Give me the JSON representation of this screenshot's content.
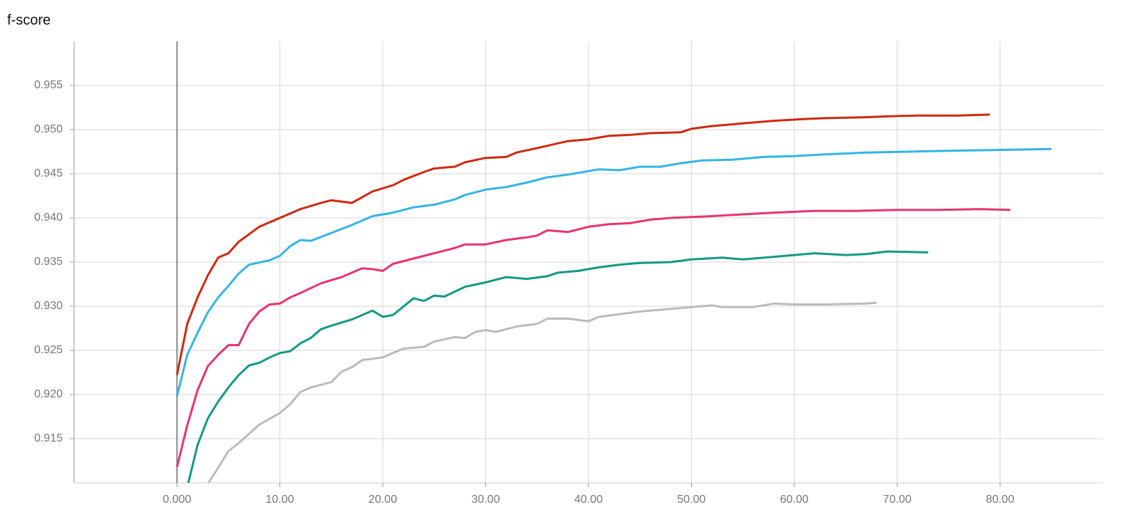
{
  "chart_data": {
    "type": "line",
    "title": "f-score",
    "xlim": [
      -10,
      90
    ],
    "ylim": [
      0.91,
      0.96
    ],
    "grid": true,
    "xticks": [
      {
        "value": 0,
        "label": "0.000"
      },
      {
        "value": 10,
        "label": "10.00"
      },
      {
        "value": 20,
        "label": "20.00"
      },
      {
        "value": 30,
        "label": "30.00"
      },
      {
        "value": 40,
        "label": "40.00"
      },
      {
        "value": 50,
        "label": "50.00"
      },
      {
        "value": 60,
        "label": "60.00"
      },
      {
        "value": 70,
        "label": "70.00"
      },
      {
        "value": 80,
        "label": "80.00"
      }
    ],
    "yticks": [
      0.915,
      {
        "value": 0.92,
        "label": "0.920"
      },
      0.925,
      {
        "value": 0.93,
        "label": "0.930"
      },
      0.935,
      {
        "value": 0.94,
        "label": "0.940"
      },
      0.945,
      {
        "value": 0.95,
        "label": "0.950"
      },
      0.955
    ],
    "series": [
      {
        "color": "#cc2a10",
        "x": [
          0,
          1,
          2,
          3,
          4,
          5,
          6,
          8,
          10,
          12,
          14,
          15,
          17,
          19,
          21,
          22,
          24,
          25,
          27,
          28,
          30,
          32,
          33,
          35,
          38,
          40,
          42,
          44,
          46,
          49,
          50,
          52,
          55,
          58,
          61,
          63,
          67,
          69,
          72,
          76,
          79
        ],
        "values": [
          0.9222,
          0.928,
          0.931,
          0.9335,
          0.9355,
          0.936,
          0.9373,
          0.939,
          0.94,
          0.941,
          0.9417,
          0.942,
          0.9417,
          0.943,
          0.9437,
          0.9443,
          0.9452,
          0.9456,
          0.9458,
          0.9463,
          0.9468,
          0.9469,
          0.9474,
          0.9479,
          0.9487,
          0.9489,
          0.9493,
          0.9494,
          0.9496,
          0.9497,
          0.9501,
          0.9504,
          0.9507,
          0.951,
          0.9512,
          0.9513,
          0.9514,
          0.9515,
          0.9516,
          0.9516,
          0.9517
        ]
      },
      {
        "color": "#33b5e5",
        "x": [
          0,
          1,
          2,
          3,
          4,
          5,
          6,
          7,
          9,
          10,
          11,
          12,
          13,
          15,
          17,
          19,
          21,
          23,
          25,
          27,
          28,
          30,
          32,
          34,
          36,
          38,
          41,
          43,
          45,
          47,
          49,
          51,
          54,
          57,
          60,
          63,
          67,
          71,
          75,
          80,
          85
        ],
        "values": [
          0.9198,
          0.9245,
          0.927,
          0.9293,
          0.931,
          0.9323,
          0.9337,
          0.9347,
          0.9352,
          0.9357,
          0.9368,
          0.9375,
          0.9374,
          0.9383,
          0.9392,
          0.9402,
          0.9406,
          0.9412,
          0.9415,
          0.9421,
          0.9426,
          0.9432,
          0.9435,
          0.944,
          0.9446,
          0.9449,
          0.9455,
          0.9454,
          0.9458,
          0.9458,
          0.9462,
          0.9465,
          0.9466,
          0.9469,
          0.947,
          0.9472,
          0.9474,
          0.9475,
          0.9476,
          0.9477,
          0.9478
        ]
      },
      {
        "color": "#e8336f",
        "x": [
          0,
          1,
          2,
          3,
          4,
          5,
          6,
          7,
          8,
          9,
          10,
          11,
          12,
          14,
          16,
          18,
          19,
          20,
          21,
          23,
          25,
          27,
          28,
          30,
          32,
          34,
          35,
          36,
          38,
          40,
          42,
          44,
          46,
          48,
          50,
          52,
          55,
          58,
          62,
          66,
          70,
          74,
          78,
          81
        ],
        "values": [
          0.9118,
          0.9165,
          0.9205,
          0.9232,
          0.9245,
          0.9256,
          0.9256,
          0.928,
          0.9294,
          0.9302,
          0.9303,
          0.931,
          0.9315,
          0.9326,
          0.9333,
          0.9343,
          0.9342,
          0.934,
          0.9348,
          0.9354,
          0.936,
          0.9366,
          0.937,
          0.937,
          0.9375,
          0.9378,
          0.938,
          0.9386,
          0.9384,
          0.939,
          0.9393,
          0.9394,
          0.9398,
          0.94,
          0.9401,
          0.9402,
          0.9404,
          0.9406,
          0.9408,
          0.9408,
          0.9409,
          0.9409,
          0.941,
          0.9409
        ]
      },
      {
        "color": "#129983",
        "x": [
          1,
          2,
          3,
          4,
          5,
          6,
          7,
          8,
          9,
          10,
          11,
          12,
          13,
          14,
          15,
          17,
          19,
          20,
          21,
          23,
          24,
          25,
          26,
          28,
          30,
          32,
          34,
          36,
          37,
          39,
          41,
          43,
          45,
          48,
          50,
          53,
          55,
          58,
          60,
          62,
          65,
          67,
          69,
          73
        ],
        "values": [
          0.9095,
          0.9143,
          0.9173,
          0.9192,
          0.9208,
          0.9222,
          0.9233,
          0.9236,
          0.9242,
          0.9247,
          0.9249,
          0.9258,
          0.9264,
          0.9274,
          0.9278,
          0.9285,
          0.9295,
          0.9288,
          0.929,
          0.9309,
          0.9306,
          0.9312,
          0.9311,
          0.9322,
          0.9327,
          0.9333,
          0.9331,
          0.9334,
          0.9338,
          0.934,
          0.9344,
          0.9347,
          0.9349,
          0.935,
          0.9353,
          0.9355,
          0.9353,
          0.9356,
          0.9358,
          0.936,
          0.9358,
          0.9359,
          0.9362,
          0.9361
        ]
      },
      {
        "color": "#bbbbbb",
        "x": [
          3,
          4,
          5,
          6,
          8,
          10,
          11,
          12,
          13,
          15,
          16,
          17,
          18,
          20,
          22,
          24,
          25,
          27,
          28,
          29,
          30,
          31,
          33,
          35,
          36,
          38,
          40,
          41,
          43,
          45,
          48,
          50,
          52,
          53,
          56,
          58,
          60,
          63,
          67,
          68
        ],
        "values": [
          0.9099,
          0.9117,
          0.9136,
          0.9145,
          0.9166,
          0.9179,
          0.9189,
          0.9203,
          0.9208,
          0.9214,
          0.9226,
          0.9231,
          0.9239,
          0.9242,
          0.9252,
          0.9254,
          0.926,
          0.9265,
          0.9264,
          0.9271,
          0.9273,
          0.9271,
          0.9277,
          0.928,
          0.9286,
          0.9286,
          0.9283,
          0.9288,
          0.9291,
          0.9294,
          0.9297,
          0.9299,
          0.9301,
          0.9299,
          0.9299,
          0.9303,
          0.9302,
          0.9302,
          0.9303,
          0.9304
        ]
      }
    ]
  }
}
